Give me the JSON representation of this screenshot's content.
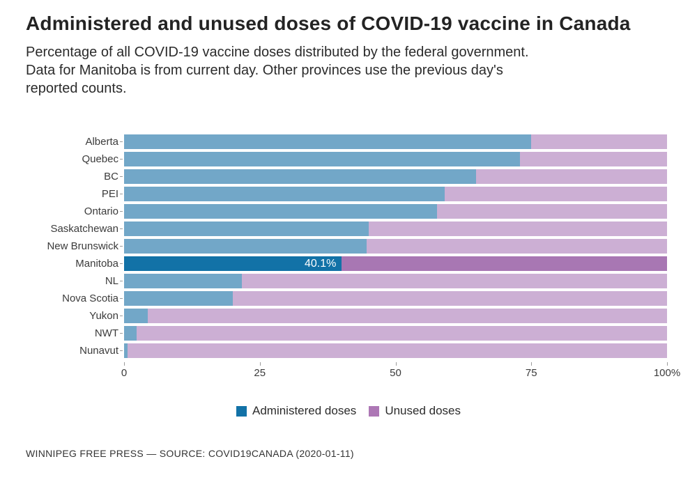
{
  "header": {
    "title": "Administered and unused doses of COVID-19 vaccine in Canada",
    "subtitle_lines": [
      "Percentage of all COVID-19 vaccine doses distributed by the federal government.",
      "Data for Manitoba is from current day. Other provinces use the previous day's",
      "reported counts."
    ]
  },
  "chart_data": {
    "type": "bar",
    "orientation": "horizontal",
    "stacked": true,
    "title": "Administered and unused doses of COVID-19 vaccine in Canada",
    "categories": [
      "Alberta",
      "Quebec",
      "BC",
      "PEI",
      "Ontario",
      "Saskatchewan",
      "New Brunswick",
      "Manitoba",
      "NL",
      "Nova Scotia",
      "Yukon",
      "NWT",
      "Nunavut"
    ],
    "series": [
      {
        "name": "Administered doses",
        "color": "#72a7c8",
        "highlight_color": "#1272a7",
        "values": [
          75.0,
          72.9,
          64.8,
          59.1,
          57.6,
          45.0,
          44.7,
          40.1,
          21.7,
          20.0,
          4.4,
          2.3,
          0.6
        ]
      },
      {
        "name": "Unused doses",
        "color": "#ccafd4",
        "highlight_color": "#a877b3",
        "values": [
          25.0,
          27.1,
          35.2,
          40.9,
          42.4,
          55.0,
          55.3,
          59.9,
          78.3,
          80.0,
          95.6,
          97.7,
          99.4
        ]
      }
    ],
    "highlight_category": "Manitoba",
    "highlight_label": "40.1%",
    "x_ticks": [
      {
        "label": "0",
        "value": 0
      },
      {
        "label": "25",
        "value": 25
      },
      {
        "label": "50",
        "value": 50
      },
      {
        "label": "75",
        "value": 75
      },
      {
        "label": "100%",
        "value": 100
      }
    ],
    "xlim": [
      0,
      100
    ],
    "grid": false,
    "legend_position": "bottom-center"
  },
  "legend": {
    "items": [
      {
        "label": "Administered doses",
        "color": "#1272a7"
      },
      {
        "label": "Unused doses",
        "color": "#ad77b5"
      }
    ]
  },
  "footer": {
    "credit": "WINNIPEG FREE PRESS — SOURCE: COVID19CANADA (2020-01-11)"
  }
}
